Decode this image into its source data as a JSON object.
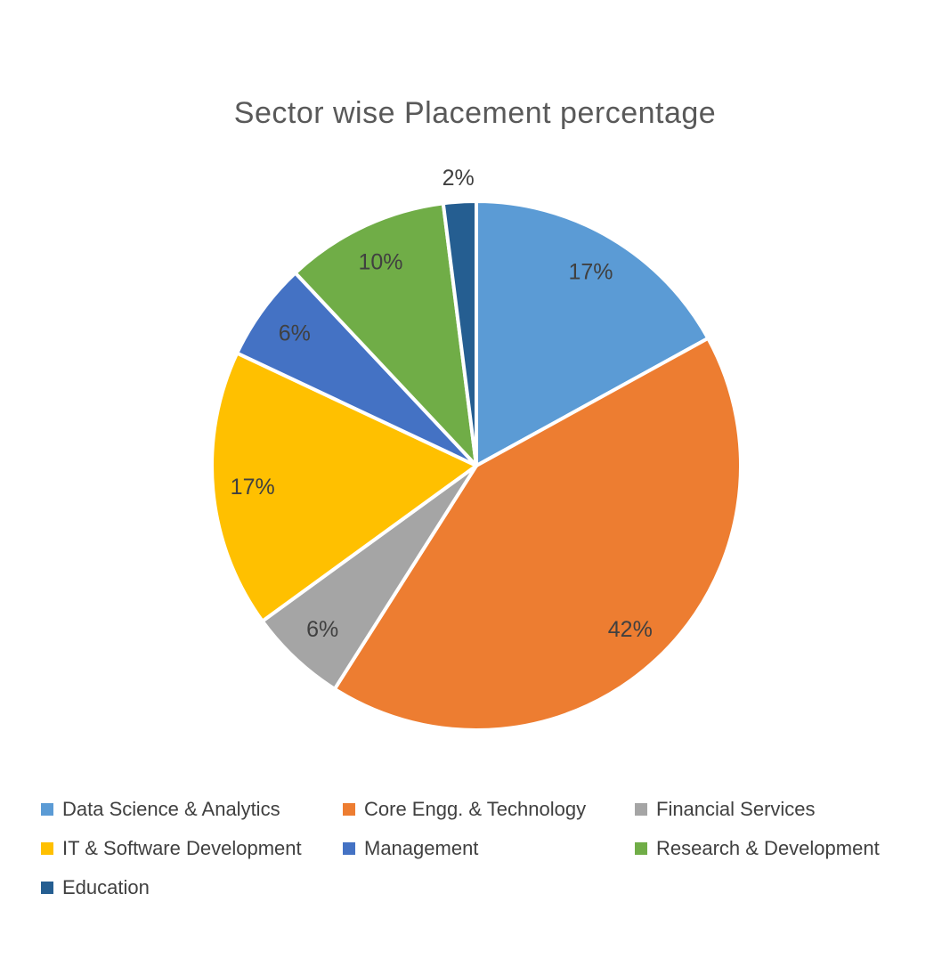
{
  "chart_data": {
    "type": "pie",
    "title": "Sector wise Placement percentage",
    "title_color": "#595959",
    "label_color": "#404040",
    "start_angle": 0,
    "direction": "clockwise",
    "legend_position": "bottom",
    "legend_columns": 3,
    "background_color": "#ffffff",
    "slice_gap_color": "#ffffff",
    "categories": [
      "Data Science & Analytics",
      "Core Engg. & Technology",
      "Financial Services",
      "IT & Software Development",
      "Management",
      "Research & Development",
      "Education"
    ],
    "values": [
      17,
      42,
      6,
      17,
      6,
      10,
      2
    ],
    "slices": [
      {
        "label": "Data Science & Analytics",
        "value": 17,
        "display": "17%",
        "color": "#5B9BD5"
      },
      {
        "label": "Core Engg. & Technology",
        "value": 42,
        "display": "42%",
        "color": "#ED7D31"
      },
      {
        "label": "Financial Services",
        "value": 6,
        "display": "6%",
        "color": "#A5A5A5"
      },
      {
        "label": "IT & Software Development",
        "value": 17,
        "display": "17%",
        "color": "#FFC000"
      },
      {
        "label": "Management",
        "value": 6,
        "display": "6%",
        "color": "#4472C4"
      },
      {
        "label": "Research & Development",
        "value": 10,
        "display": "10%",
        "color": "#70AD47"
      },
      {
        "label": "Education",
        "value": 2,
        "display": "2%",
        "color": "#255E91"
      }
    ]
  }
}
